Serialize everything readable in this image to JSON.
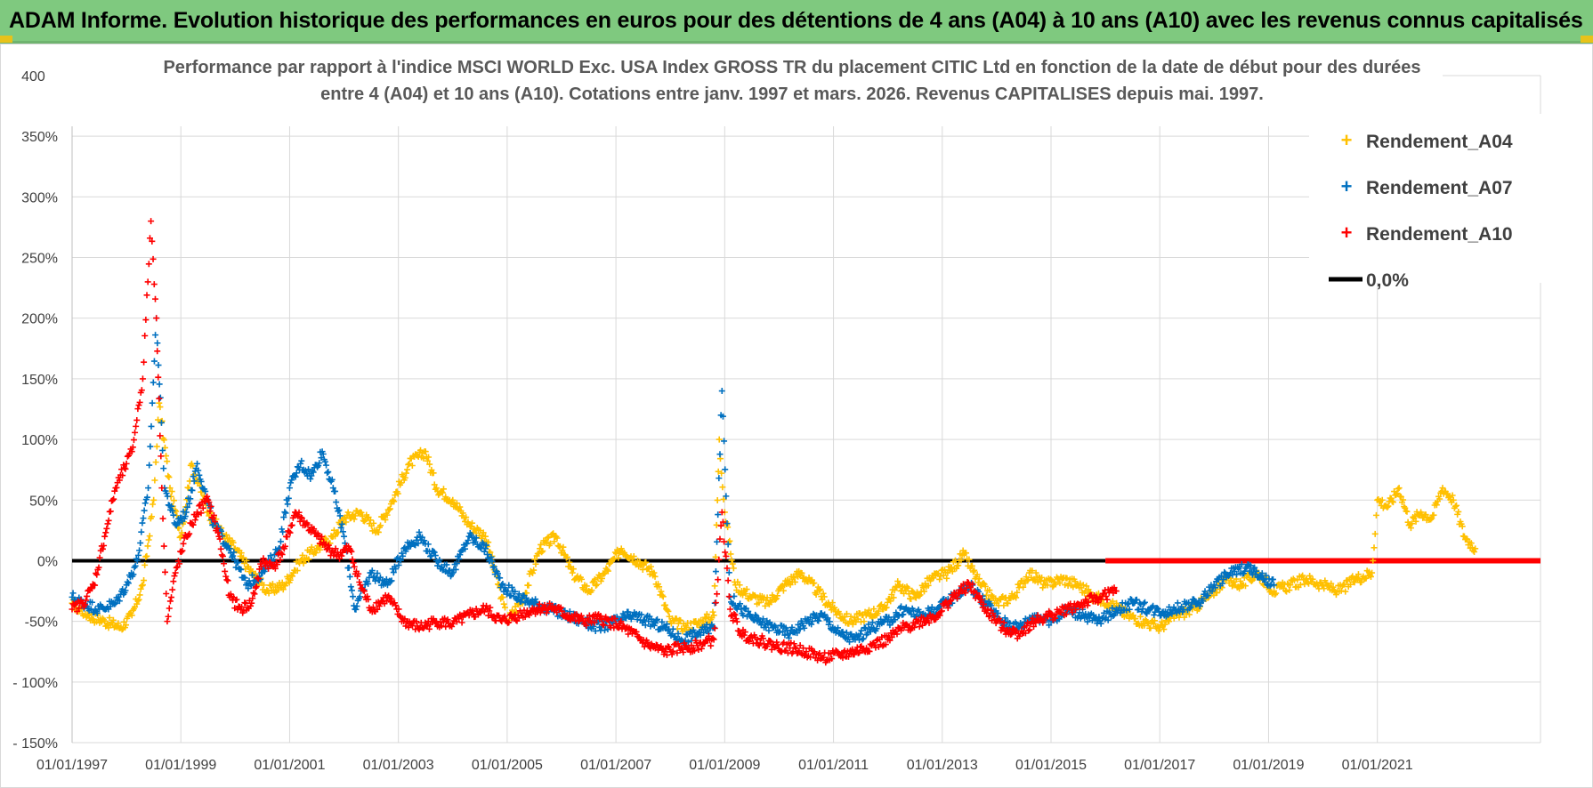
{
  "header": {
    "title": "ADAM Informe. Evolution historique des performances en euros pour des détentions de 4 ans (A04) à 10 ans (A10) avec les revenus connus capitalisés"
  },
  "colors": {
    "header_bg": "#7fc97f",
    "a04": "#ffc000",
    "a07": "#0070c0",
    "a10": "#ff0000",
    "zero": "#000000",
    "grid": "#d9d9d9"
  },
  "chart_data": {
    "type": "scatter",
    "title_lines": [
      "Performance par rapport à l'indice MSCI WORLD Exc. USA Index GROSS TR  du placement CITIC Ltd en fonction de la date de début pour des durées",
      "entre 4 (A04) et 10 ans (A10).  Cotations entre janv. 1997 et mars. 2026.  Revenus CAPITALISES  depuis mai. 1997."
    ],
    "xlabel": "",
    "ylabel": "",
    "xlim": [
      1997.0,
      2024.0
    ],
    "ylim": [
      -150,
      400
    ],
    "x_tick_values": [
      1997,
      1999,
      2001,
      2003,
      2005,
      2007,
      2009,
      2011,
      2013,
      2015,
      2017,
      2019,
      2021
    ],
    "x_tick_labels": [
      "01/01/1997",
      "01/01/1999",
      "01/01/2001",
      "01/01/2003",
      "01/01/2005",
      "01/01/2007",
      "01/01/2009",
      "01/01/2011",
      "01/01/2013",
      "01/01/2015",
      "01/01/2017",
      "01/01/2019",
      "01/01/2021"
    ],
    "y_tick_values": [
      400,
      350,
      300,
      250,
      200,
      150,
      100,
      50,
      0,
      -50,
      -100,
      -150
    ],
    "y_tick_labels": [
      "400%",
      "350%",
      "300%",
      "250%",
      "200%",
      "150%",
      "100%",
      "50%",
      "0%",
      "-50%",
      "- 100%",
      "- 150%"
    ],
    "grid": true,
    "legend_position": "top-right",
    "series": [
      {
        "name": "Rendement_A04",
        "color": "#ffc000",
        "marker": "+",
        "x": [
          1997.0,
          1997.3,
          1997.6,
          1997.9,
          1998.1,
          1998.3,
          1998.5,
          1998.6,
          1998.8,
          1999.0,
          1999.2,
          1999.5,
          1999.8,
          2000.0,
          2000.3,
          2000.6,
          2000.9,
          2001.2,
          2001.5,
          2001.8,
          2002.0,
          2002.3,
          2002.6,
          2002.9,
          2003.2,
          2003.5,
          2003.7,
          2004.0,
          2004.3,
          2004.6,
          2004.9,
          2005.0,
          2005.3,
          2005.6,
          2005.9,
          2006.2,
          2006.5,
          2006.8,
          2007.1,
          2007.4,
          2007.7,
          2008.0,
          2008.3,
          2008.6,
          2008.8,
          2008.9,
          2009.0,
          2009.2,
          2009.5,
          2009.8,
          2010.1,
          2010.4,
          2010.7,
          2011.0,
          2011.3,
          2011.6,
          2011.9,
          2012.2,
          2012.5,
          2012.8,
          2013.1,
          2013.4,
          2013.7,
          2014.0,
          2014.3,
          2014.6,
          2014.9,
          2015.2,
          2015.5,
          2015.8,
          2016.1,
          2016.4,
          2016.7,
          2017.0,
          2017.3,
          2017.6,
          2017.9,
          2018.2,
          2018.5,
          2018.8,
          2019.1,
          2019.4,
          2019.7,
          2020.0,
          2020.3,
          2020.6,
          2020.9,
          2021.0,
          2021.2,
          2021.4,
          2021.6,
          2021.8,
          2022.0,
          2022.2,
          2022.4,
          2022.6,
          2022.8
        ],
        "y": [
          -35,
          -45,
          -50,
          -55,
          -45,
          -20,
          50,
          130,
          60,
          20,
          80,
          40,
          20,
          10,
          -10,
          -25,
          -20,
          0,
          10,
          20,
          35,
          40,
          25,
          50,
          80,
          90,
          60,
          50,
          30,
          20,
          -30,
          -50,
          -30,
          10,
          20,
          -10,
          -25,
          -10,
          10,
          0,
          -10,
          -50,
          -55,
          -50,
          -45,
          100,
          40,
          -20,
          -30,
          -35,
          -20,
          -10,
          -25,
          -40,
          -50,
          -45,
          -40,
          -20,
          -30,
          -15,
          -10,
          5,
          -20,
          -35,
          -30,
          -10,
          -20,
          -15,
          -20,
          -30,
          -35,
          -45,
          -50,
          -55,
          -45,
          -40,
          -30,
          -15,
          -20,
          -10,
          -25,
          -20,
          -15,
          -20,
          -25,
          -15,
          -10,
          50,
          45,
          60,
          30,
          40,
          35,
          60,
          50,
          20,
          10
        ]
      },
      {
        "name": "Rendement_A07",
        "color": "#0070c0",
        "marker": "+",
        "x": [
          1997.0,
          1997.2,
          1997.5,
          1997.8,
          1998.0,
          1998.2,
          1998.4,
          1998.55,
          1998.7,
          1998.9,
          1999.1,
          1999.3,
          1999.6,
          1999.9,
          2000.2,
          2000.5,
          2000.8,
          2001.0,
          2001.2,
          2001.4,
          2001.6,
          2001.8,
          2002.0,
          2002.2,
          2002.5,
          2002.8,
          2003.1,
          2003.4,
          2003.7,
          2004.0,
          2004.3,
          2004.6,
          2004.9,
          2005.2,
          2005.5,
          2005.8,
          2006.1,
          2006.4,
          2006.7,
          2007.0,
          2007.3,
          2007.6,
          2007.9,
          2008.2,
          2008.5,
          2008.8,
          2008.95,
          2009.1,
          2009.3,
          2009.6,
          2009.9,
          2010.2,
          2010.5,
          2010.8,
          2011.1,
          2011.4,
          2011.7,
          2012.0,
          2012.3,
          2012.6,
          2012.9,
          2013.2,
          2013.5,
          2013.8,
          2014.1,
          2014.4,
          2014.7,
          2015.0,
          2015.3,
          2015.6,
          2015.9,
          2016.2,
          2016.5,
          2016.8,
          2017.1,
          2017.4,
          2017.7,
          2018.0,
          2018.3,
          2018.6,
          2018.9,
          2019.1
        ],
        "y": [
          -30,
          -35,
          -40,
          -35,
          -20,
          0,
          60,
          200,
          60,
          30,
          40,
          80,
          30,
          10,
          -20,
          -10,
          10,
          60,
          80,
          70,
          90,
          60,
          20,
          -40,
          -10,
          -20,
          10,
          20,
          0,
          -10,
          20,
          10,
          -20,
          -30,
          -35,
          -40,
          -45,
          -50,
          -55,
          -50,
          -45,
          -50,
          -55,
          -65,
          -60,
          -55,
          140,
          -30,
          -40,
          -50,
          -55,
          -60,
          -50,
          -45,
          -60,
          -65,
          -55,
          -50,
          -40,
          -45,
          -40,
          -30,
          -20,
          -35,
          -50,
          -55,
          -45,
          -50,
          -40,
          -45,
          -50,
          -40,
          -35,
          -40,
          -42,
          -38,
          -35,
          -20,
          -10,
          -5,
          -15,
          -20
        ]
      },
      {
        "name": "Rendement_A10",
        "color": "#ff0000",
        "marker": "+",
        "x": [
          1997.0,
          1997.2,
          1997.4,
          1997.6,
          1997.8,
          1998.0,
          1998.1,
          1998.3,
          1998.45,
          1998.55,
          1998.65,
          1998.75,
          1998.9,
          1999.1,
          1999.3,
          1999.5,
          1999.7,
          1999.9,
          2000.1,
          2000.3,
          2000.5,
          2000.7,
          2000.9,
          2001.1,
          2001.3,
          2001.5,
          2001.7,
          2001.9,
          2002.1,
          2002.3,
          2002.5,
          2002.8,
          2003.1,
          2003.4,
          2003.7,
          2004.0,
          2004.3,
          2004.6,
          2004.9,
          2005.2,
          2005.5,
          2005.8,
          2006.1,
          2006.4,
          2006.7,
          2007.0,
          2007.3,
          2007.6,
          2007.9,
          2008.2,
          2008.5,
          2008.8,
          2008.95,
          2009.1,
          2009.3,
          2009.6,
          2009.9,
          2010.2,
          2010.5,
          2010.8,
          2011.1,
          2011.4,
          2011.7,
          2012.0,
          2012.3,
          2012.6,
          2012.9,
          2013.2,
          2013.5,
          2013.8,
          2014.1,
          2014.4,
          2014.7,
          2015.0,
          2015.3,
          2015.6,
          2015.9,
          2016.2
        ],
        "y": [
          -40,
          -35,
          -20,
          20,
          60,
          80,
          90,
          150,
          280,
          200,
          60,
          -50,
          -10,
          20,
          40,
          50,
          20,
          -30,
          -40,
          -35,
          0,
          -5,
          10,
          40,
          30,
          20,
          10,
          5,
          10,
          -20,
          -40,
          -30,
          -50,
          -55,
          -50,
          -52,
          -45,
          -40,
          -50,
          -45,
          -40,
          -38,
          -45,
          -50,
          -48,
          -52,
          -60,
          -70,
          -75,
          -72,
          -70,
          -65,
          40,
          -40,
          -60,
          -65,
          -70,
          -72,
          -75,
          -80,
          -78,
          -75,
          -70,
          -65,
          -55,
          -50,
          -45,
          -30,
          -20,
          -40,
          -55,
          -60,
          -50,
          -45,
          -40,
          -35,
          -30,
          -25
        ]
      }
    ],
    "zero_line": {
      "name": "0,0%",
      "color": "#000000",
      "value": 0,
      "x_range": [
        1997.0,
        2016.0
      ]
    },
    "red_flat_segment": {
      "x_range": [
        2016.0,
        2024.0
      ],
      "value": 0,
      "color": "#ff0000"
    }
  }
}
